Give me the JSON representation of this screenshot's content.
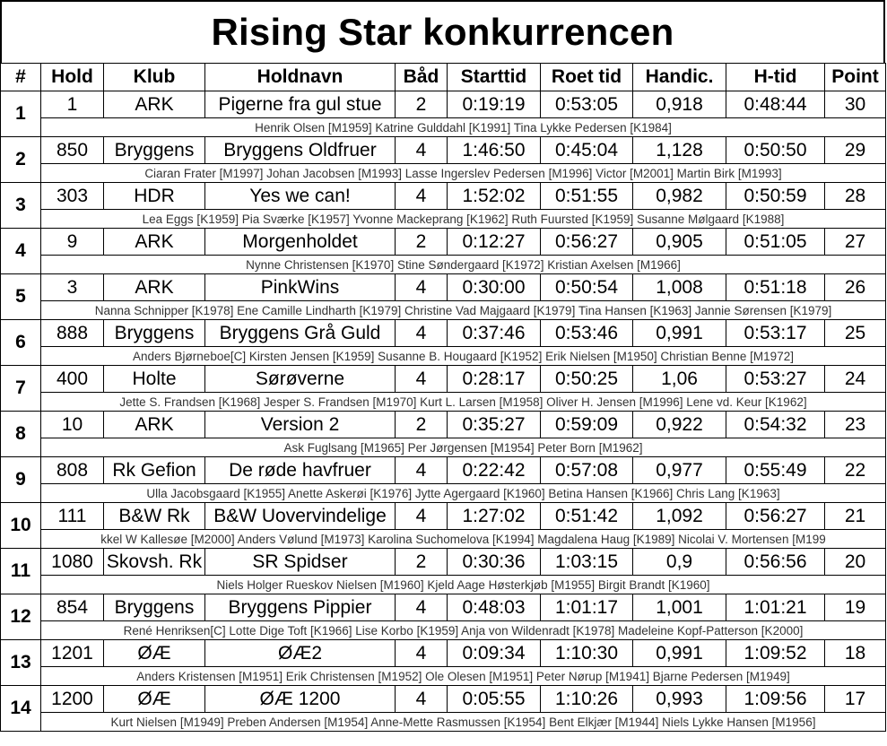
{
  "title": "Rising Star konkurrencen",
  "columns": [
    "#",
    "Hold",
    "Klub",
    "Holdnavn",
    "Båd",
    "Starttid",
    "Roet tid",
    "Handic.",
    "H-tid",
    "Point"
  ],
  "rows": [
    {
      "rank": "1",
      "hold": "1",
      "klub": "ARK",
      "holdnavn": "Pigerne fra gul stue",
      "baad": "2",
      "starttid": "0:19:19",
      "roet_tid": "0:53:05",
      "handic": "0,918",
      "h_tid": "0:48:44",
      "point": "30",
      "crew": "Henrik Olsen [M1959] Katrine Gulddahl [K1991] Tina Lykke Pedersen [K1984]"
    },
    {
      "rank": "2",
      "hold": "850",
      "klub": "Bryggens",
      "holdnavn": "Bryggens Oldfruer",
      "baad": "4",
      "starttid": "1:46:50",
      "roet_tid": "0:45:04",
      "handic": "1,128",
      "h_tid": "0:50:50",
      "point": "29",
      "crew": "Ciaran Frater [M1997] Johan Jacobsen [M1993] Lasse Ingerslev Pedersen [M1996] Victor [M2001] Martin Birk [M1993]"
    },
    {
      "rank": "3",
      "hold": "303",
      "klub": "HDR",
      "holdnavn": "Yes we can!",
      "baad": "4",
      "starttid": "1:52:02",
      "roet_tid": "0:51:55",
      "handic": "0,982",
      "h_tid": "0:50:59",
      "point": "28",
      "crew": "Lea Eggs [K1959] Pia Sværke [K1957] Yvonne Mackeprang [K1962] Ruth Fuursted [K1959] Susanne Mølgaard [K1988]"
    },
    {
      "rank": "4",
      "hold": "9",
      "klub": "ARK",
      "holdnavn": "Morgenholdet",
      "baad": "2",
      "starttid": "0:12:27",
      "roet_tid": "0:56:27",
      "handic": "0,905",
      "h_tid": "0:51:05",
      "point": "27",
      "crew": "Nynne Christensen [K1970] Stine Søndergaard [K1972] Kristian Axelsen [M1966]"
    },
    {
      "rank": "5",
      "hold": "3",
      "klub": "ARK",
      "holdnavn": "PinkWins",
      "baad": "4",
      "starttid": "0:30:00",
      "roet_tid": "0:50:54",
      "handic": "1,008",
      "h_tid": "0:51:18",
      "point": "26",
      "crew": "Nanna Schnipper [K1978] Ene Camille Lindharth [K1979] Christine Vad Majgaard [K1979] Tina Hansen [K1963] Jannie Sørensen [K1979]"
    },
    {
      "rank": "6",
      "hold": "888",
      "klub": "Bryggens",
      "holdnavn": "Bryggens Grå Guld",
      "baad": "4",
      "starttid": "0:37:46",
      "roet_tid": "0:53:46",
      "handic": "0,991",
      "h_tid": "0:53:17",
      "point": "25",
      "crew": "Anders Bjørneboe[C] Kirsten Jensen [K1959] Susanne B. Hougaard [K1952] Erik Nielsen [M1950] Christian Benne [M1972]"
    },
    {
      "rank": "7",
      "hold": "400",
      "klub": "Holte",
      "holdnavn": "Sørøverne",
      "baad": "4",
      "starttid": "0:28:17",
      "roet_tid": "0:50:25",
      "handic": "1,06",
      "h_tid": "0:53:27",
      "point": "24",
      "crew": "Jette S. Frandsen [K1968] Jesper S. Frandsen [M1970] Kurt L. Larsen [M1958] Oliver H. Jensen [M1996] Lene vd. Keur [K1962]"
    },
    {
      "rank": "8",
      "hold": "10",
      "klub": "ARK",
      "holdnavn": "Version 2",
      "baad": "2",
      "starttid": "0:35:27",
      "roet_tid": "0:59:09",
      "handic": "0,922",
      "h_tid": "0:54:32",
      "point": "23",
      "crew": "Ask Fuglsang [M1965] Per Jørgensen [M1954] Peter Born [M1962]"
    },
    {
      "rank": "9",
      "hold": "808",
      "klub": "Rk Gefion",
      "holdnavn": "De røde havfruer",
      "baad": "4",
      "starttid": "0:22:42",
      "roet_tid": "0:57:08",
      "handic": "0,977",
      "h_tid": "0:55:49",
      "point": "22",
      "crew": "Ulla Jacobsgaard [K1955] Anette Askerøi [K1976] Jytte Agergaard [K1960] Betina Hansen [K1966] Chris Lang [K1963]"
    },
    {
      "rank": "10",
      "hold": "111",
      "klub": "B&W Rk",
      "holdnavn": "B&W Uovervindelige",
      "baad": "4",
      "starttid": "1:27:02",
      "roet_tid": "0:51:42",
      "handic": "1,092",
      "h_tid": "0:56:27",
      "point": "21",
      "crew": "kkel W Kallesøe [M2000] Anders Vølund [M1973] Karolina Suchomelova [K1994] Magdalena Haug [K1989] Nicolai V. Mortensen [M199"
    },
    {
      "rank": "11",
      "hold": "1080",
      "klub": "Skovsh. Rk",
      "holdnavn": "SR Spidser",
      "baad": "2",
      "starttid": "0:30:36",
      "roet_tid": "1:03:15",
      "handic": "0,9",
      "h_tid": "0:56:56",
      "point": "20",
      "crew": "Niels Holger Rueskov Nielsen [M1960] Kjeld Aage Høsterkjøb [M1955] Birgit Brandt [K1960]"
    },
    {
      "rank": "12",
      "hold": "854",
      "klub": "Bryggens",
      "holdnavn": "Bryggens Pippier",
      "baad": "4",
      "starttid": "0:48:03",
      "roet_tid": "1:01:17",
      "handic": "1,001",
      "h_tid": "1:01:21",
      "point": "19",
      "crew": "René Henriksen[C] Lotte Dige Toft [K1966] Lise Korbo [K1959] Anja von Wildenradt [K1978] Madeleine Kopf-Patterson [K2000]"
    },
    {
      "rank": "13",
      "hold": "1201",
      "klub": "ØÆ",
      "holdnavn": "ØÆ2",
      "baad": "4",
      "starttid": "0:09:34",
      "roet_tid": "1:10:30",
      "handic": "0,991",
      "h_tid": "1:09:52",
      "point": "18",
      "crew": "Anders Kristensen [M1951] Erik Christensen [M1952] Ole Olesen [M1951] Peter Nørup [M1941] Bjarne Pedersen [M1949]"
    },
    {
      "rank": "14",
      "hold": "1200",
      "klub": "ØÆ",
      "holdnavn": "ØÆ 1200",
      "baad": "4",
      "starttid": "0:05:55",
      "roet_tid": "1:10:26",
      "handic": "0,993",
      "h_tid": "1:09:56",
      "point": "17",
      "crew": "Kurt Nielsen [M1949] Preben Andersen [M1954] Anne-Mette Rasmussen [K1954] Bent Elkjær [M1944] Niels Lykke Hansen [M1956]"
    }
  ]
}
